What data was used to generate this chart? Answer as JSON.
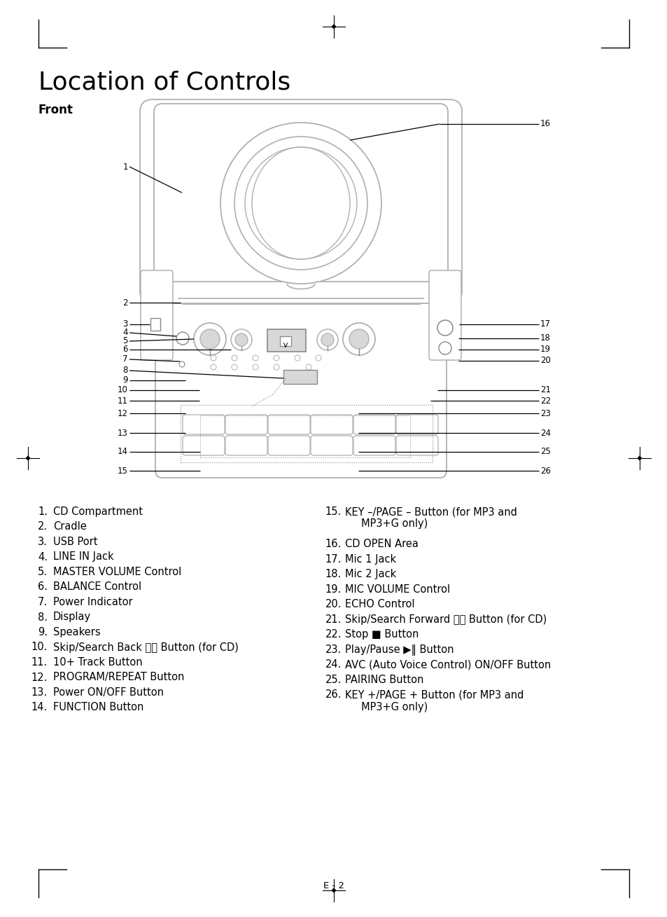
{
  "title": "Location of Controls",
  "front_label": "Front",
  "bg_color": "#ffffff",
  "text_color": "#000000",
  "gc": "#b0b0b0",
  "dc": "#888888",
  "lc": "#d8d8d8",
  "page_label": "E - 2",
  "left_list": [
    [
      "1.",
      "CD Compartment"
    ],
    [
      "2.",
      "Cradle"
    ],
    [
      "3.",
      "USB Port"
    ],
    [
      "4.",
      "LINE IN Jack"
    ],
    [
      "5.",
      "MASTER VOLUME Control"
    ],
    [
      "6.",
      "BALANCE Control"
    ],
    [
      "7.",
      "Power Indicator"
    ],
    [
      "8.",
      "Display"
    ],
    [
      "9.",
      "Speakers"
    ],
    [
      "10.",
      "Skip/Search Back ⧉⧉ Button (for CD)"
    ],
    [
      "11.",
      "10+ Track Button"
    ],
    [
      "12.",
      "PROGRAM/REPEAT Button"
    ],
    [
      "13.",
      "Power ON/OFF Button"
    ],
    [
      "14.",
      "FUNCTION Button"
    ]
  ],
  "right_list": [
    [
      "15.",
      "KEY –/PAGE – Button (for MP3 and\n     MP3+G only)"
    ],
    [
      "16.",
      "CD OPEN Area"
    ],
    [
      "17.",
      "Mic 1 Jack"
    ],
    [
      "18.",
      "Mic 2 Jack"
    ],
    [
      "19.",
      "MIC VOLUME Control"
    ],
    [
      "20.",
      "ECHO Control"
    ],
    [
      "21.",
      "Skip/Search Forward ⧊⧊ Button (for CD)"
    ],
    [
      "22.",
      "Stop ■ Button"
    ],
    [
      "23.",
      "Play/Pause ▶‖ Button"
    ],
    [
      "24.",
      "AVC (Auto Voice Control) ON/OFF Button"
    ],
    [
      "25.",
      "PAIRING Button"
    ],
    [
      "26.",
      "KEY +/PAGE + Button (for MP3 and\n     MP3+G only)"
    ]
  ]
}
